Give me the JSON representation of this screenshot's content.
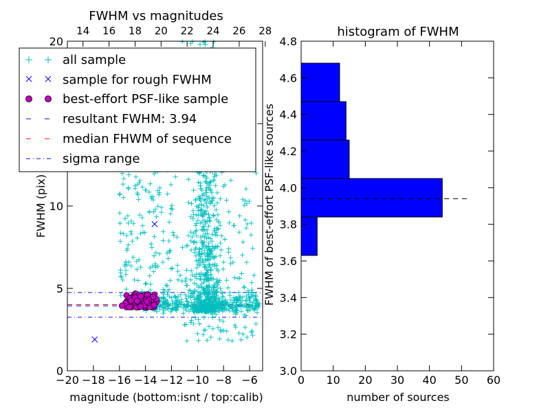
{
  "chart_data": [
    {
      "type": "scatter",
      "title": "FWHM vs magnitudes",
      "xlabel": "magnitude (bottom:isnt / top:calib)",
      "ylabel": "FWHM (pix)",
      "xlim": [
        -20,
        -5
      ],
      "ylim": [
        0,
        20
      ],
      "x_ticks": [
        "−20",
        "−18",
        "−16",
        "−14",
        "−12",
        "−10",
        "−8",
        "−6"
      ],
      "x_tick_values": [
        -20,
        -18,
        -16,
        -14,
        -12,
        -10,
        -8,
        -6
      ],
      "top_ticks": [
        "14",
        "16",
        "18",
        "20",
        "22",
        "24",
        "26",
        "28"
      ],
      "top_tick_values": [
        -18.8,
        -16.8,
        -14.8,
        -12.8,
        -10.8,
        -8.8,
        -6.8,
        -4.8
      ],
      "y_ticks": [
        "0",
        "5",
        "10",
        "15",
        "20"
      ],
      "y_tick_values": [
        0,
        5,
        10,
        15,
        20
      ],
      "legend": {
        "position": "upper-left",
        "entries": [
          {
            "label": "all sample",
            "marker": "+",
            "color": "#00bfbf"
          },
          {
            "label": "sample for rough FWHM",
            "marker": "x",
            "color": "#0000ff"
          },
          {
            "label": "best-effort PSF-like sample",
            "marker": "o",
            "color": "#bf00bf"
          },
          {
            "label": "resultant FWHM: 3.94",
            "line": "dashed",
            "color": "#0000ff"
          },
          {
            "label": "median FHWM of sequence",
            "line": "dashed",
            "color": "#ff0000"
          },
          {
            "label": "sigma range",
            "line": "dashdot",
            "color": "#0000ff"
          }
        ]
      },
      "lines": {
        "resultant_fwhm": 3.94,
        "median_fwhm": 4.02,
        "sigma_upper": 4.75,
        "sigma_lower": 3.25
      },
      "rough_sample": [
        [
          -17.9,
          1.9
        ],
        [
          -13.3,
          8.9
        ]
      ],
      "series_description": "all sample: dense vertical band near magnitude -10 to -8 spanning FWHM 3.5–20, a base band at FWHM ~4 from -14 to -5, scattered points -16 to -12; best-effort sample clustered at magnitude -15.8 to -13.1, FWHM 3.8–4.7"
    },
    {
      "type": "bar",
      "orientation": "horizontal",
      "title": "histogram of FWHM",
      "xlabel": "number of sources",
      "ylabel": "FWHM of best-effort PSF-like sources",
      "xlim": [
        0,
        60
      ],
      "ylim": [
        3.0,
        4.8
      ],
      "x_ticks": [
        "0",
        "10",
        "20",
        "30",
        "40",
        "50",
        "60"
      ],
      "x_tick_values": [
        0,
        10,
        20,
        30,
        40,
        50,
        60
      ],
      "y_ticks": [
        "3.0",
        "3.2",
        "3.4",
        "3.6",
        "3.8",
        "4.0",
        "4.2",
        "4.4",
        "4.6",
        "4.8"
      ],
      "y_tick_values": [
        3.0,
        3.2,
        3.4,
        3.6,
        3.8,
        4.0,
        4.2,
        4.4,
        4.6,
        4.8
      ],
      "bins": [
        {
          "from": 3.63,
          "to": 3.84,
          "count": 5
        },
        {
          "from": 3.84,
          "to": 4.05,
          "count": 44
        },
        {
          "from": 4.05,
          "to": 4.26,
          "count": 15
        },
        {
          "from": 4.26,
          "to": 4.47,
          "count": 14
        },
        {
          "from": 4.47,
          "to": 4.68,
          "count": 12
        }
      ],
      "bar_color": "#0000ff",
      "reference_line": {
        "value": 3.94,
        "extent": 52,
        "style": "dashed",
        "color": "#000000"
      }
    }
  ]
}
